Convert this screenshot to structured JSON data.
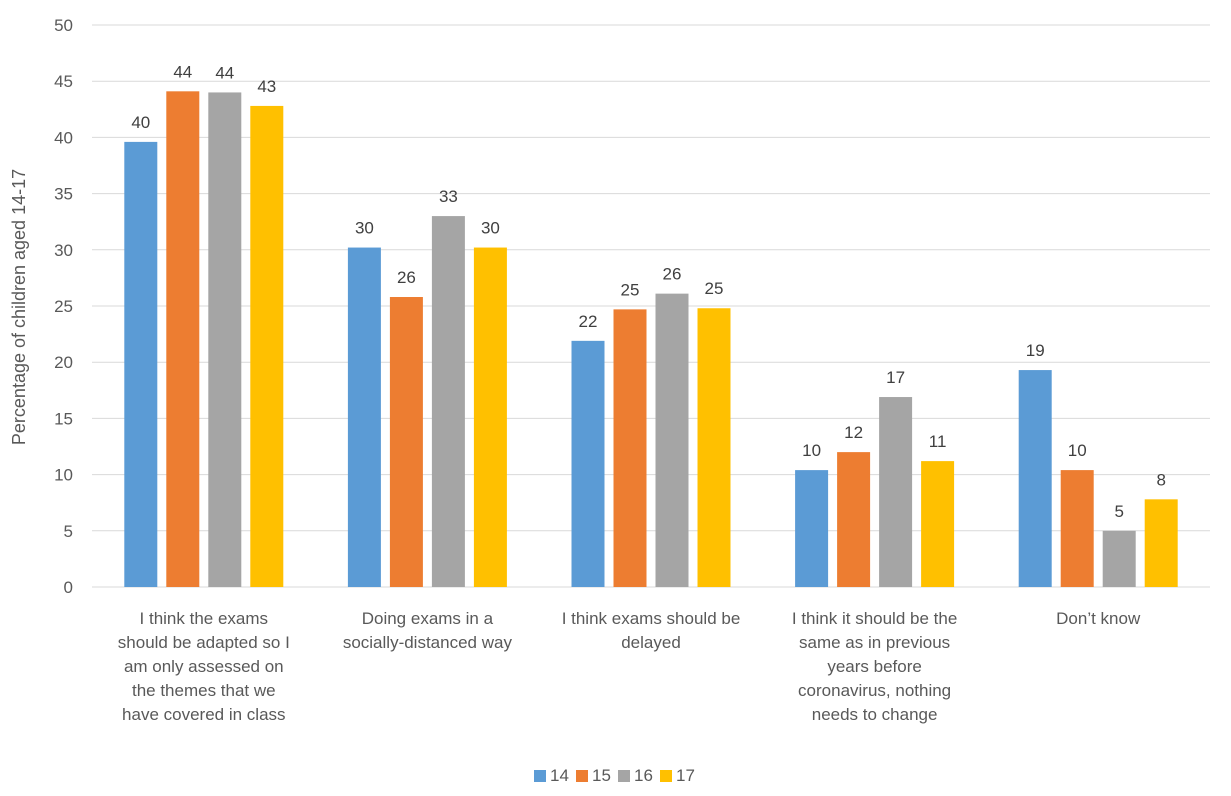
{
  "chart_data": {
    "type": "bar",
    "title": "",
    "xlabel": "",
    "ylabel": "Percentage of children aged 14-17",
    "ylim": [
      0,
      50
    ],
    "yticks": [
      0,
      5,
      10,
      15,
      20,
      25,
      30,
      35,
      40,
      45,
      50
    ],
    "grid": true,
    "legend_position": "bottom",
    "categories": [
      [
        "I think the exams",
        "should be adapted so I",
        "am only assessed on",
        "the themes that we",
        "have covered in class"
      ],
      [
        "Doing exams in a",
        "socially-distanced way"
      ],
      [
        "I think exams should be",
        "delayed"
      ],
      [
        "I think it should be the",
        "same as in previous",
        "years before",
        "coronavirus, nothing",
        "needs to change"
      ],
      [
        "Don’t know"
      ]
    ],
    "series": [
      {
        "name": "14",
        "color": "#5B9BD5",
        "values": [
          39.6,
          30.2,
          21.9,
          10.4,
          19.3
        ],
        "labels": [
          "40",
          "30",
          "22",
          "10",
          "19"
        ]
      },
      {
        "name": "15",
        "color": "#ED7D31",
        "values": [
          44.1,
          25.8,
          24.7,
          12.0,
          10.4
        ],
        "labels": [
          "44",
          "26",
          "25",
          "12",
          "10"
        ]
      },
      {
        "name": "16",
        "color": "#A5A5A5",
        "values": [
          44.0,
          33.0,
          26.1,
          16.9,
          5.0
        ],
        "labels": [
          "44",
          "33",
          "26",
          "17",
          "5"
        ]
      },
      {
        "name": "17",
        "color": "#FFC000",
        "values": [
          42.8,
          30.2,
          24.8,
          11.2,
          7.8
        ],
        "labels": [
          "43",
          "30",
          "25",
          "11",
          "8"
        ]
      }
    ]
  }
}
